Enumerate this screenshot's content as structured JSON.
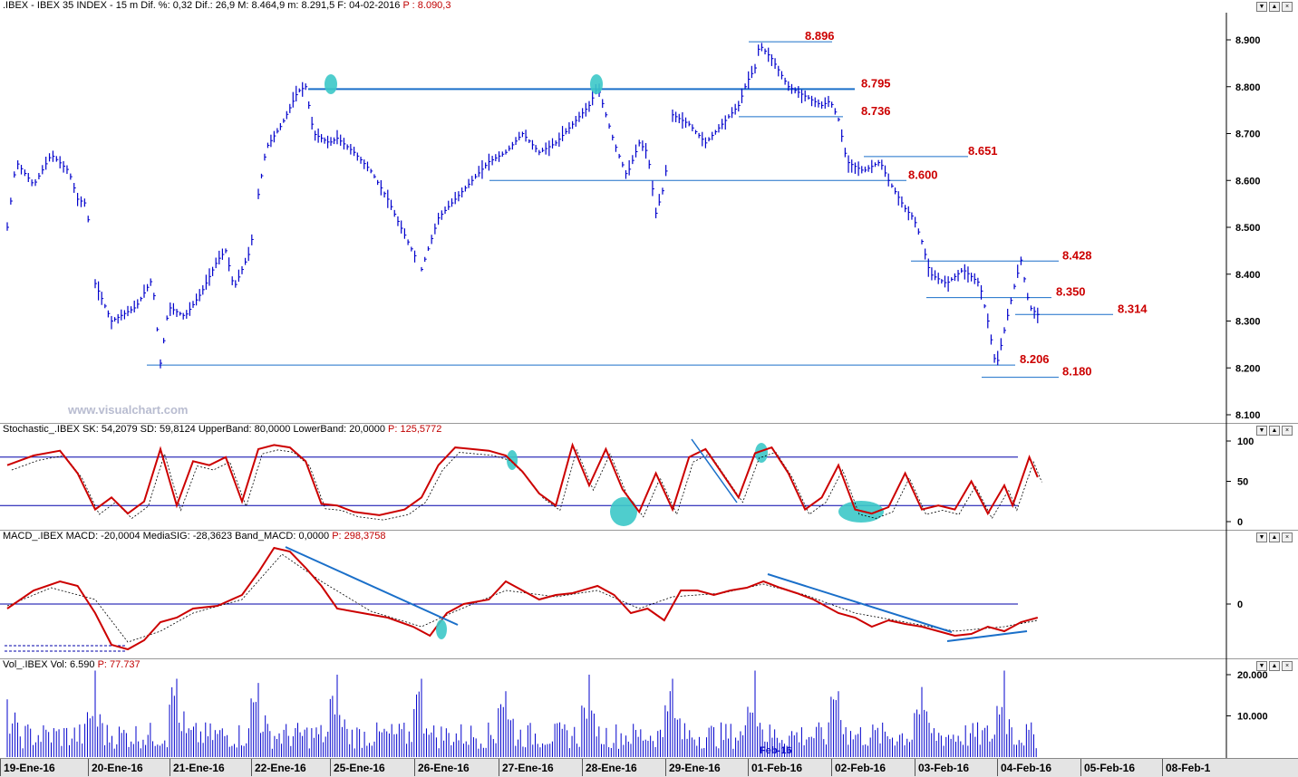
{
  "price_panel": {
    "header_prefix": ".IBEX - IBEX 35 INDEX - ",
    "header_interval": "15 m",
    "header_stats": " Dif. %: 0,32  Dif.: 26,9  M: 8.464,9  m: 8.291,5  F: 04-02-2016  ",
    "header_last": "P : 8.090,3",
    "watermark": "www.visualchart.com"
  },
  "stoch_panel": {
    "header_main": "Stochastic_.IBEX SK: 54,2079  SD: 59,8124  UpperBand: 80,0000  LowerBand: 20,0000  ",
    "header_last": "P: 125,5772"
  },
  "macd_panel": {
    "header_main": "MACD_.IBEX MACD: -20,0004  MediaSIG: -28,3623  Band_MACD: 0,0000  ",
    "header_last": "P: 298,3758"
  },
  "vol_panel": {
    "header_main": "Vol_.IBEX Vol: 6.590  ",
    "header_last": "P: 77.737"
  },
  "feb_label": "Feb-16",
  "window_buttons": [
    "▼",
    "▲",
    "×"
  ],
  "dates": [
    "19-Ene-16",
    "20-Ene-16",
    "21-Ene-16",
    "22-Ene-16",
    "25-Ene-16",
    "26-Ene-16",
    "27-Ene-16",
    "28-Ene-16",
    "29-Ene-16",
    "01-Feb-16",
    "02-Feb-16",
    "03-Feb-16",
    "04-Feb-16",
    "05-Feb-16",
    "08-Feb-1"
  ],
  "colors": {
    "price_bars": "#0000cc",
    "levels": "#1a6fc9",
    "level_labels": "#cc0000",
    "stoch_line": "#cc0000",
    "macd_line": "#cc0000",
    "highlight": "#3cc8c8",
    "volume": "#0000cc"
  },
  "chart_data": [
    {
      "type": "line",
      "title": "IBEX 35 INDEX 15 m",
      "y_axis_ticks": [
        "8.100",
        "8.200",
        "8.300",
        "8.400",
        "8.500",
        "8.600",
        "8.700",
        "8.800",
        "8.900"
      ],
      "ylim": [
        8100,
        8920
      ],
      "levels": [
        {
          "label": "8.896",
          "value": 8896
        },
        {
          "label": "8.795",
          "value": 8795
        },
        {
          "label": "8.736",
          "value": 8736
        },
        {
          "label": "8.651",
          "value": 8651
        },
        {
          "label": "8.600",
          "value": 8600
        },
        {
          "label": "8.428",
          "value": 8428
        },
        {
          "label": "8.350",
          "value": 8350
        },
        {
          "label": "8.314",
          "value": 8314
        },
        {
          "label": "8.206",
          "value": 8206
        },
        {
          "label": "8.180",
          "value": 8180
        }
      ],
      "x": [
        "19-Ene-16",
        "20-Ene-16",
        "21-Ene-16",
        "22-Ene-16",
        "25-Ene-16",
        "26-Ene-16",
        "27-Ene-16",
        "28-Ene-16",
        "29-Ene-16",
        "01-Feb-16",
        "02-Feb-16",
        "03-Feb-16",
        "04-Feb-16"
      ],
      "path": [
        [
          0,
          8500
        ],
        [
          0.1,
          8640
        ],
        [
          0.3,
          8590
        ],
        [
          0.5,
          8655
        ],
        [
          0.7,
          8620
        ],
        [
          0.8,
          8560
        ],
        [
          0.9,
          8550
        ],
        [
          1.0,
          8380
        ],
        [
          1.2,
          8300
        ],
        [
          1.5,
          8330
        ],
        [
          1.7,
          8390
        ],
        [
          1.8,
          8210
        ],
        [
          1.9,
          8330
        ],
        [
          2.1,
          8310
        ],
        [
          2.3,
          8360
        ],
        [
          2.5,
          8430
        ],
        [
          2.6,
          8450
        ],
        [
          2.7,
          8370
        ],
        [
          2.9,
          8450
        ],
        [
          3.0,
          8570
        ],
        [
          3.1,
          8670
        ],
        [
          3.3,
          8720
        ],
        [
          3.5,
          8790
        ],
        [
          3.6,
          8800
        ],
        [
          3.7,
          8700
        ],
        [
          3.9,
          8680
        ],
        [
          4.0,
          8690
        ],
        [
          4.2,
          8660
        ],
        [
          4.4,
          8620
        ],
        [
          4.6,
          8560
        ],
        [
          4.7,
          8520
        ],
        [
          5.0,
          8410
        ],
        [
          5.2,
          8520
        ],
        [
          5.4,
          8560
        ],
        [
          5.6,
          8600
        ],
        [
          5.8,
          8640
        ],
        [
          6.0,
          8660
        ],
        [
          6.2,
          8700
        ],
        [
          6.4,
          8660
        ],
        [
          6.6,
          8680
        ],
        [
          6.8,
          8720
        ],
        [
          7.0,
          8760
        ],
        [
          7.1,
          8800
        ],
        [
          7.2,
          8740
        ],
        [
          7.3,
          8680
        ],
        [
          7.45,
          8610
        ],
        [
          7.6,
          8680
        ],
        [
          7.7,
          8660
        ],
        [
          7.8,
          8530
        ],
        [
          7.9,
          8590
        ],
        [
          8.0,
          8740
        ],
        [
          8.2,
          8720
        ],
        [
          8.4,
          8680
        ],
        [
          8.6,
          8720
        ],
        [
          8.8,
          8760
        ],
        [
          8.9,
          8810
        ],
        [
          9.0,
          8840
        ],
        [
          9.05,
          8890
        ],
        [
          9.2,
          8860
        ],
        [
          9.4,
          8800
        ],
        [
          9.6,
          8780
        ],
        [
          9.8,
          8760
        ],
        [
          9.9,
          8770
        ],
        [
          10.0,
          8730
        ],
        [
          10.1,
          8640
        ],
        [
          10.3,
          8620
        ],
        [
          10.5,
          8640
        ],
        [
          10.6,
          8600
        ],
        [
          10.8,
          8540
        ],
        [
          10.9,
          8520
        ],
        [
          11.0,
          8470
        ],
        [
          11.1,
          8400
        ],
        [
          11.3,
          8380
        ],
        [
          11.5,
          8410
        ],
        [
          11.7,
          8380
        ],
        [
          11.8,
          8300
        ],
        [
          11.9,
          8200
        ],
        [
          12.0,
          8280
        ],
        [
          12.1,
          8360
        ],
        [
          12.2,
          8430
        ],
        [
          12.3,
          8330
        ],
        [
          12.4,
          8314
        ]
      ]
    },
    {
      "type": "line",
      "title": "Stochastic_.IBEX",
      "y_axis_ticks": [
        "0",
        "50",
        "100"
      ],
      "ylim": [
        0,
        100
      ],
      "bands": [
        80,
        20
      ],
      "sk": [
        [
          0,
          70
        ],
        [
          0.3,
          82
        ],
        [
          0.6,
          88
        ],
        [
          0.8,
          60
        ],
        [
          1.0,
          15
        ],
        [
          1.2,
          30
        ],
        [
          1.4,
          10
        ],
        [
          1.6,
          25
        ],
        [
          1.8,
          90
        ],
        [
          2.0,
          20
        ],
        [
          2.2,
          75
        ],
        [
          2.4,
          70
        ],
        [
          2.6,
          80
        ],
        [
          2.8,
          25
        ],
        [
          3.0,
          90
        ],
        [
          3.2,
          95
        ],
        [
          3.4,
          92
        ],
        [
          3.6,
          75
        ],
        [
          3.8,
          22
        ],
        [
          4.0,
          20
        ],
        [
          4.2,
          12
        ],
        [
          4.5,
          8
        ],
        [
          4.8,
          15
        ],
        [
          5.0,
          30
        ],
        [
          5.2,
          70
        ],
        [
          5.4,
          92
        ],
        [
          5.6,
          90
        ],
        [
          5.8,
          88
        ],
        [
          6.0,
          82
        ],
        [
          6.2,
          62
        ],
        [
          6.4,
          35
        ],
        [
          6.6,
          20
        ],
        [
          6.8,
          95
        ],
        [
          7.0,
          45
        ],
        [
          7.2,
          90
        ],
        [
          7.4,
          40
        ],
        [
          7.6,
          12
        ],
        [
          7.8,
          60
        ],
        [
          8.0,
          15
        ],
        [
          8.2,
          80
        ],
        [
          8.4,
          90
        ],
        [
          8.6,
          60
        ],
        [
          8.8,
          30
        ],
        [
          9.0,
          85
        ],
        [
          9.2,
          92
        ],
        [
          9.4,
          60
        ],
        [
          9.6,
          15
        ],
        [
          9.8,
          30
        ],
        [
          10.0,
          70
        ],
        [
          10.2,
          15
        ],
        [
          10.4,
          10
        ],
        [
          10.6,
          18
        ],
        [
          10.8,
          60
        ],
        [
          11.0,
          15
        ],
        [
          11.2,
          20
        ],
        [
          11.4,
          15
        ],
        [
          11.6,
          50
        ],
        [
          11.8,
          10
        ],
        [
          12.0,
          45
        ],
        [
          12.1,
          20
        ],
        [
          12.3,
          80
        ],
        [
          12.4,
          55
        ]
      ]
    },
    {
      "type": "line",
      "title": "MACD_.IBEX",
      "y_axis_ticks": [
        "0"
      ],
      "ylim": [
        -60,
        80
      ],
      "zero_line": 0,
      "macd": [
        [
          0,
          -5
        ],
        [
          0.3,
          15
        ],
        [
          0.6,
          25
        ],
        [
          0.8,
          20
        ],
        [
          1.0,
          -10
        ],
        [
          1.2,
          -45
        ],
        [
          1.4,
          -50
        ],
        [
          1.6,
          -40
        ],
        [
          1.8,
          -20
        ],
        [
          2.0,
          -15
        ],
        [
          2.2,
          -5
        ],
        [
          2.5,
          -2
        ],
        [
          2.8,
          10
        ],
        [
          3.0,
          35
        ],
        [
          3.2,
          62
        ],
        [
          3.4,
          58
        ],
        [
          3.6,
          40
        ],
        [
          3.8,
          20
        ],
        [
          4.0,
          -5
        ],
        [
          4.3,
          -10
        ],
        [
          4.6,
          -15
        ],
        [
          4.9,
          -25
        ],
        [
          5.1,
          -35
        ],
        [
          5.3,
          -10
        ],
        [
          5.5,
          0
        ],
        [
          5.8,
          5
        ],
        [
          6.0,
          25
        ],
        [
          6.2,
          15
        ],
        [
          6.4,
          5
        ],
        [
          6.6,
          10
        ],
        [
          6.8,
          12
        ],
        [
          7.1,
          20
        ],
        [
          7.3,
          10
        ],
        [
          7.5,
          -10
        ],
        [
          7.7,
          -5
        ],
        [
          7.9,
          -18
        ],
        [
          8.1,
          15
        ],
        [
          8.3,
          15
        ],
        [
          8.5,
          10
        ],
        [
          8.7,
          15
        ],
        [
          8.9,
          18
        ],
        [
          9.1,
          25
        ],
        [
          9.3,
          18
        ],
        [
          9.5,
          12
        ],
        [
          9.7,
          5
        ],
        [
          10.0,
          -10
        ],
        [
          10.2,
          -15
        ],
        [
          10.4,
          -25
        ],
        [
          10.6,
          -18
        ],
        [
          10.8,
          -22
        ],
        [
          11.0,
          -25
        ],
        [
          11.2,
          -30
        ],
        [
          11.4,
          -35
        ],
        [
          11.6,
          -33
        ],
        [
          11.8,
          -25
        ],
        [
          12.0,
          -30
        ],
        [
          12.2,
          -20
        ],
        [
          12.4,
          -15
        ]
      ],
      "signal": [
        [
          0,
          -2
        ],
        [
          0.5,
          18
        ],
        [
          1.0,
          5
        ],
        [
          1.4,
          -42
        ],
        [
          1.8,
          -30
        ],
        [
          2.2,
          -10
        ],
        [
          2.8,
          5
        ],
        [
          3.3,
          55
        ],
        [
          3.8,
          25
        ],
        [
          4.4,
          -8
        ],
        [
          5.0,
          -25
        ],
        [
          5.4,
          -8
        ],
        [
          6.0,
          15
        ],
        [
          6.6,
          8
        ],
        [
          7.1,
          15
        ],
        [
          7.6,
          -5
        ],
        [
          8.0,
          8
        ],
        [
          8.6,
          12
        ],
        [
          9.1,
          22
        ],
        [
          9.6,
          10
        ],
        [
          10.2,
          -10
        ],
        [
          10.8,
          -20
        ],
        [
          11.4,
          -30
        ],
        [
          12.0,
          -25
        ],
        [
          12.4,
          -18
        ]
      ]
    },
    {
      "type": "bar",
      "title": "Vol_.IBEX",
      "y_axis_ticks": [
        "10.000",
        "20.000"
      ],
      "ylim": [
        0,
        21000
      ],
      "session_open_spikes": [
        14000,
        21000,
        19000,
        18000,
        20000,
        19000,
        16000,
        20000,
        19000,
        21000,
        16000,
        17000,
        21000
      ]
    }
  ]
}
